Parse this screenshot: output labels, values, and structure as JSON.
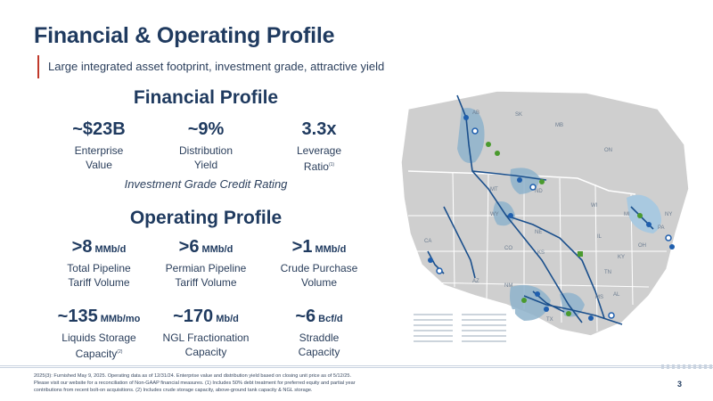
{
  "header": {
    "title": "Financial & Operating Profile",
    "subtitle": "Large integrated asset footprint, investment grade, attractive yield"
  },
  "financial_profile": {
    "heading": "Financial Profile",
    "metrics": [
      {
        "value": "~$23B",
        "label_line1": "Enterprise",
        "label_line2": "Value",
        "footnote_mark": ""
      },
      {
        "value": "~9%",
        "label_line1": "Distribution",
        "label_line2": "Yield",
        "footnote_mark": ""
      },
      {
        "value": "3.3x",
        "label_line1": "Leverage",
        "label_line2": "Ratio",
        "footnote_mark": "(1)"
      }
    ],
    "rating": "Investment Grade Credit Rating"
  },
  "operating_profile": {
    "heading": "Operating Profile",
    "metrics": [
      {
        "value": ">8",
        "unit": "MMb/d",
        "label_line1": "Total Pipeline",
        "label_line2": "Tariff Volume",
        "footnote_mark": ""
      },
      {
        "value": ">6",
        "unit": "MMb/d",
        "label_line1": "Permian Pipeline",
        "label_line2": "Tariff Volume",
        "footnote_mark": ""
      },
      {
        "value": ">1",
        "unit": "MMb/d",
        "label_line1": "Crude Purchase",
        "label_line2": "Volume",
        "footnote_mark": ""
      },
      {
        "value": "~135",
        "unit": "MMb/mo",
        "label_line1": "Liquids Storage",
        "label_line2": "Capacity",
        "footnote_mark": "(2)"
      },
      {
        "value": "~170",
        "unit": "Mb/d",
        "label_line1": "NGL Fractionation",
        "label_line2": "Capacity",
        "footnote_mark": ""
      },
      {
        "value": "~6",
        "unit": "Bcf/d",
        "label_line1": "Straddle",
        "label_line2": "Capacity",
        "footnote_mark": ""
      }
    ]
  },
  "map": {
    "region_labels": [
      "AB",
      "SK",
      "MB",
      "ON",
      "MT",
      "ND",
      "WY",
      "NE",
      "CO",
      "KS",
      "NM",
      "TX",
      "CA",
      "AZ",
      "TN",
      "AL",
      "MS",
      "KY",
      "WI",
      "MI",
      "OH",
      "PA",
      "NY",
      "IL"
    ],
    "colors": {
      "land": "#cfcfcf",
      "basin": "#8fb3cc",
      "pipeline": "#1a4f8c",
      "terminal_green": "#4a9a2e",
      "facility_blue": "#1f5fae"
    }
  },
  "footer": {
    "footnote_line1": "2025(3): Furnished May 9, 2025. Operating data as of 12/31/24. Enterprise value and distribution yield based on closing unit price as of 5/12/25.",
    "footnote_line2": "Please visit our website for a reconciliation of Non-GAAP financial measures. (1) Includes 50% debt treatment for preferred equity and partial year",
    "footnote_line3": "contributions from recent bolt-on acquisitions. (2) Includes crude storage capacity, above-ground tank capacity & NGL storage.",
    "page_number": "3"
  }
}
